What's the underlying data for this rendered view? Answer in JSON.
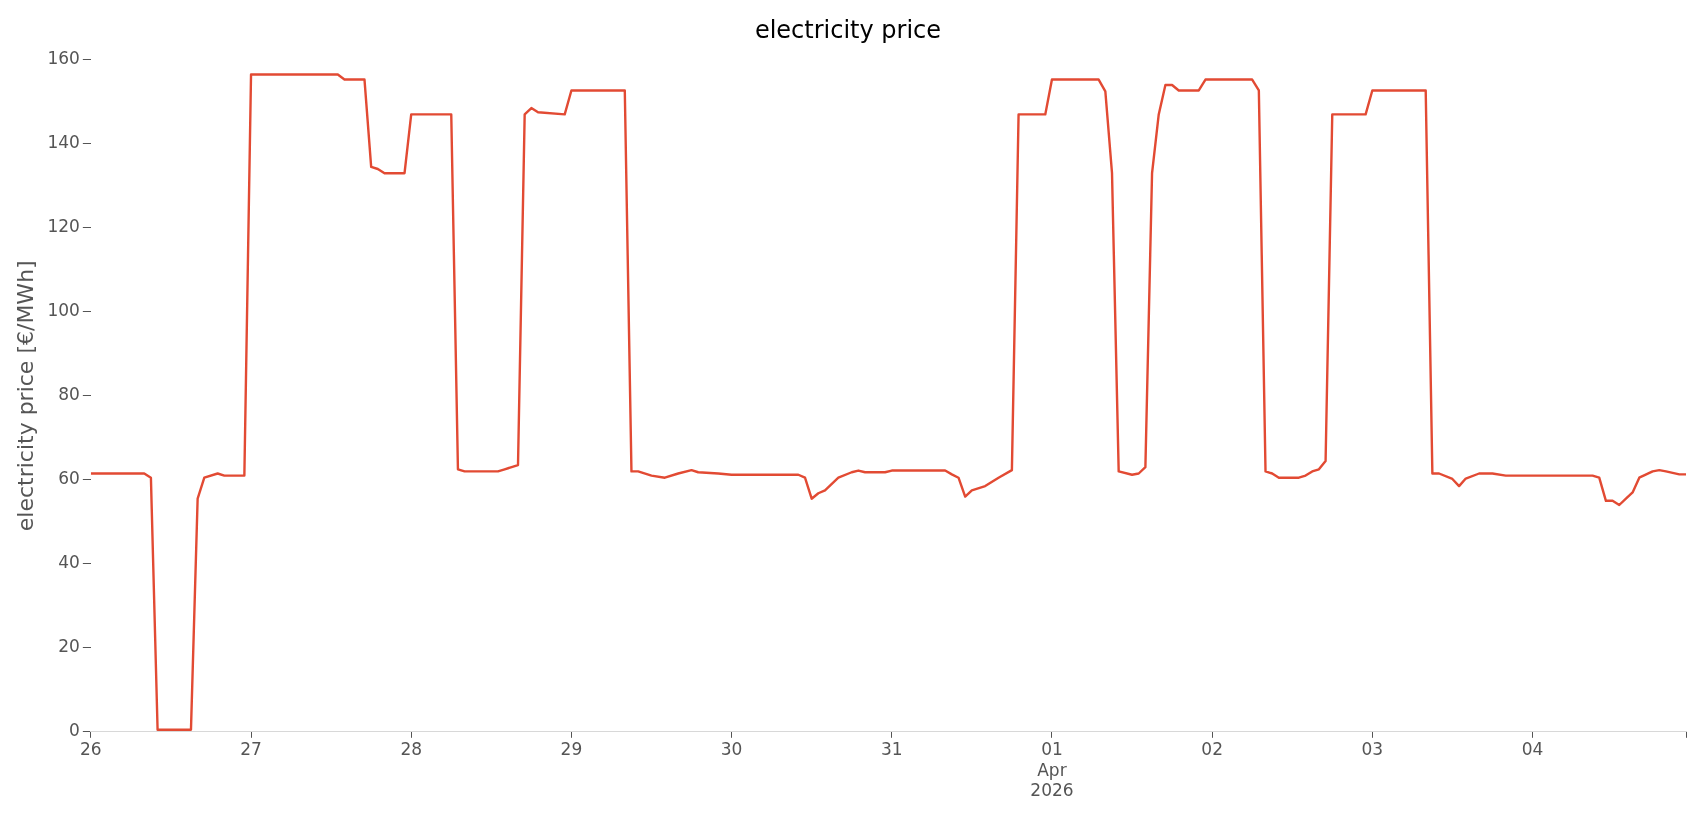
{
  "chart_data": {
    "type": "line",
    "title": "electricity price",
    "ylabel": "electricity price [€/MWh]",
    "x": [
      "2026-03-26T00:00",
      "2026-03-26T08:00",
      "2026-03-26T09:00",
      "2026-03-26T10:00",
      "2026-03-26T15:00",
      "2026-03-26T16:00",
      "2026-03-26T17:00",
      "2026-03-26T19:00",
      "2026-03-26T20:00",
      "2026-03-26T23:00",
      "2026-03-27T00:00",
      "2026-03-27T13:00",
      "2026-03-27T14:00",
      "2026-03-27T17:00",
      "2026-03-27T18:00",
      "2026-03-27T19:00",
      "2026-03-27T20:00",
      "2026-03-27T23:00",
      "2026-03-28T00:00",
      "2026-03-28T06:00",
      "2026-03-28T07:00",
      "2026-03-28T08:00",
      "2026-03-28T13:00",
      "2026-03-28T14:00",
      "2026-03-28T16:00",
      "2026-03-28T17:00",
      "2026-03-28T18:00",
      "2026-03-28T19:00",
      "2026-03-28T23:00",
      "2026-03-29T00:00",
      "2026-03-29T08:00",
      "2026-03-29T09:00",
      "2026-03-29T10:00",
      "2026-03-29T12:00",
      "2026-03-29T14:00",
      "2026-03-29T16:00",
      "2026-03-29T18:00",
      "2026-03-29T19:00",
      "2026-03-29T22:00",
      "2026-03-30T00:00",
      "2026-03-30T10:00",
      "2026-03-30T11:00",
      "2026-03-30T12:00",
      "2026-03-30T13:00",
      "2026-03-30T14:00",
      "2026-03-30T16:00",
      "2026-03-30T18:00",
      "2026-03-30T19:00",
      "2026-03-30T20:00",
      "2026-03-30T23:00",
      "2026-03-31T00:00",
      "2026-03-31T08:00",
      "2026-03-31T09:00",
      "2026-03-31T10:00",
      "2026-03-31T11:00",
      "2026-03-31T12:00",
      "2026-03-31T14:00",
      "2026-03-31T16:00",
      "2026-03-31T18:00",
      "2026-03-31T19:00",
      "2026-03-31T23:00",
      "2026-04-01T00:00",
      "2026-04-01T07:00",
      "2026-04-01T08:00",
      "2026-04-01T09:00",
      "2026-04-01T10:00",
      "2026-04-01T12:00",
      "2026-04-01T13:00",
      "2026-04-01T14:00",
      "2026-04-01T15:00",
      "2026-04-01T16:00",
      "2026-04-01T17:00",
      "2026-04-01T18:00",
      "2026-04-01T19:00",
      "2026-04-01T22:00",
      "2026-04-01T23:00",
      "2026-04-02T06:00",
      "2026-04-02T07:00",
      "2026-04-02T08:00",
      "2026-04-02T09:00",
      "2026-04-02T10:00",
      "2026-04-02T13:00",
      "2026-04-02T14:00",
      "2026-04-02T15:00",
      "2026-04-02T16:00",
      "2026-04-02T17:00",
      "2026-04-02T18:00",
      "2026-04-02T23:00",
      "2026-04-03T00:00",
      "2026-04-03T08:00",
      "2026-04-03T09:00",
      "2026-04-03T10:00",
      "2026-04-03T12:00",
      "2026-04-03T13:00",
      "2026-04-03T14:00",
      "2026-04-03T16:00",
      "2026-04-03T18:00",
      "2026-04-03T20:00",
      "2026-04-04T09:00",
      "2026-04-04T10:00",
      "2026-04-04T11:00",
      "2026-04-04T12:00",
      "2026-04-04T13:00",
      "2026-04-04T14:00",
      "2026-04-04T15:00",
      "2026-04-04T16:00",
      "2026-04-04T18:00",
      "2026-04-04T19:00",
      "2026-04-04T20:00",
      "2026-04-04T22:00",
      "2026-04-04T23:00"
    ],
    "series": [
      {
        "color": "#e24a33",
        "values": [
          61.5,
          61.5,
          60.5,
          0.5,
          0.5,
          55.5,
          60.5,
          61.5,
          61,
          61,
          156.5,
          156.5,
          155.3,
          155.3,
          134.5,
          134,
          133,
          133,
          147,
          147,
          62.5,
          62,
          62,
          62.5,
          63.5,
          147,
          148.5,
          147.5,
          147,
          152.7,
          152.7,
          62,
          62,
          61,
          60.5,
          61.5,
          62.3,
          61.8,
          61.5,
          61.2,
          61.2,
          60.5,
          55.5,
          56.8,
          57.5,
          60.5,
          61.8,
          62.2,
          61.8,
          61.8,
          62.2,
          62.2,
          61.3,
          60.5,
          56,
          57.5,
          58.5,
          60.5,
          62.3,
          147,
          147,
          155.3,
          155.3,
          152.5,
          133,
          62,
          61.2,
          61.5,
          63,
          133,
          147,
          154,
          154,
          152.7,
          152.7,
          155.3,
          155.3,
          152.7,
          62,
          61.5,
          60.5,
          60.5,
          61,
          62,
          62.5,
          64.5,
          147,
          147,
          152.7,
          152.7,
          61.5,
          61.5,
          60.2,
          58.5,
          60.3,
          61.5,
          61.5,
          61,
          61,
          60.5,
          55,
          55,
          54,
          55.5,
          57,
          60.5,
          62,
          62.3,
          62,
          61.3,
          61.3
        ]
      }
    ],
    "xticks": [
      {
        "value": "2026-03-26",
        "label": "26"
      },
      {
        "value": "2026-03-27",
        "label": "27"
      },
      {
        "value": "2026-03-28",
        "label": "28"
      },
      {
        "value": "2026-03-29",
        "label": "29"
      },
      {
        "value": "2026-03-30",
        "label": "30"
      },
      {
        "value": "2026-03-31",
        "label": "31"
      },
      {
        "value": "2026-04-01",
        "label": "01\nApr\n2026"
      },
      {
        "value": "2026-04-02",
        "label": "02"
      },
      {
        "value": "2026-04-03",
        "label": "03"
      },
      {
        "value": "2026-04-04",
        "label": "04"
      },
      {
        "value": "2026-04-04T23:00",
        "label": null
      }
    ],
    "xlim": [
      "2026-03-26T00:00",
      "2026-04-04T23:00"
    ],
    "ylim": [
      0,
      160
    ],
    "yticks": [
      0,
      20,
      40,
      60,
      80,
      100,
      120,
      140,
      160
    ],
    "grid": false,
    "legend": false,
    "marker": "none",
    "line_style": "solid"
  }
}
